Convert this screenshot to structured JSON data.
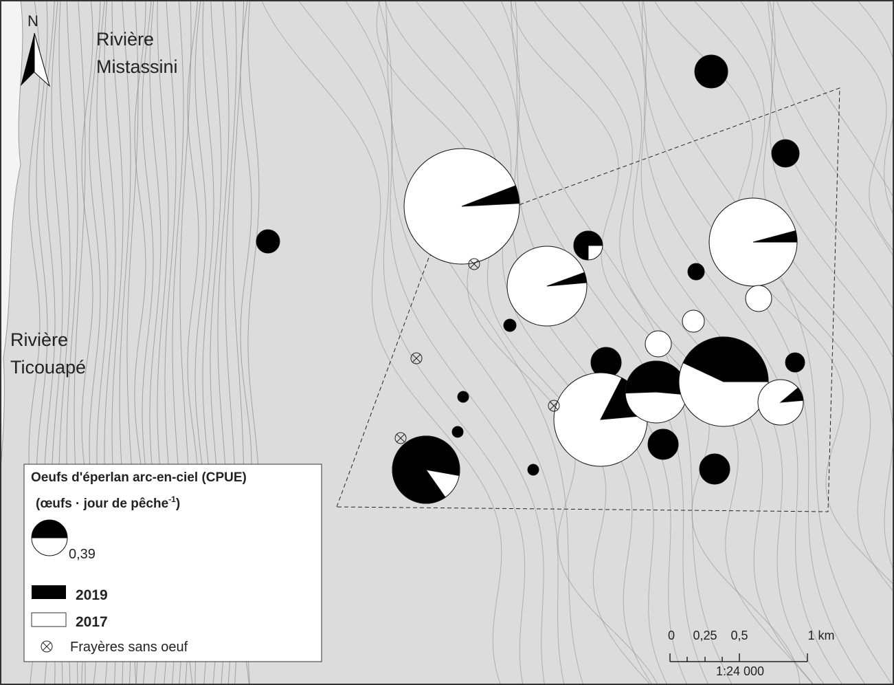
{
  "north": "N",
  "labels": {
    "river_1": [
      "Rivière",
      "Mistassini"
    ],
    "river_2": [
      "Rivière",
      "Ticouapé"
    ]
  },
  "legend": {
    "title": "Oeufs d'éperlan arc-en-ciel (CPUE)",
    "unit": "(œufs · jour de pêche",
    "unit_sup": "-1",
    "size_example": "0,39",
    "year_a": "2019",
    "year_b": "2017",
    "no_egg": "Frayères sans oeuf"
  },
  "scale": {
    "ticks": [
      "0",
      "0,25",
      "0,5",
      "1 km"
    ],
    "ratio": "1:24 000"
  }
}
